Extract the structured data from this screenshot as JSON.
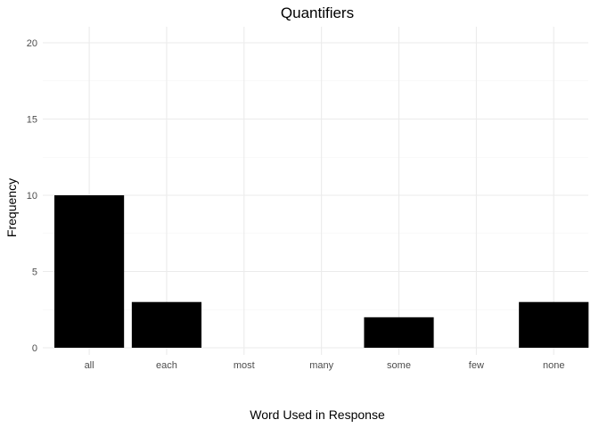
{
  "chart_data": {
    "type": "bar",
    "title": "Quantifiers",
    "xlabel": "Word Used in Response",
    "ylabel": "Frequency",
    "categories": [
      "all",
      "each",
      "most",
      "many",
      "some",
      "few",
      "none"
    ],
    "values": [
      10,
      3,
      0,
      0,
      2,
      0,
      3
    ],
    "ylim": [
      0,
      20
    ],
    "yticks": [
      0,
      5,
      10,
      15,
      20
    ],
    "grid": true,
    "legend": "none",
    "bar_color": "#000000",
    "grid_color": "#ebebeb"
  }
}
